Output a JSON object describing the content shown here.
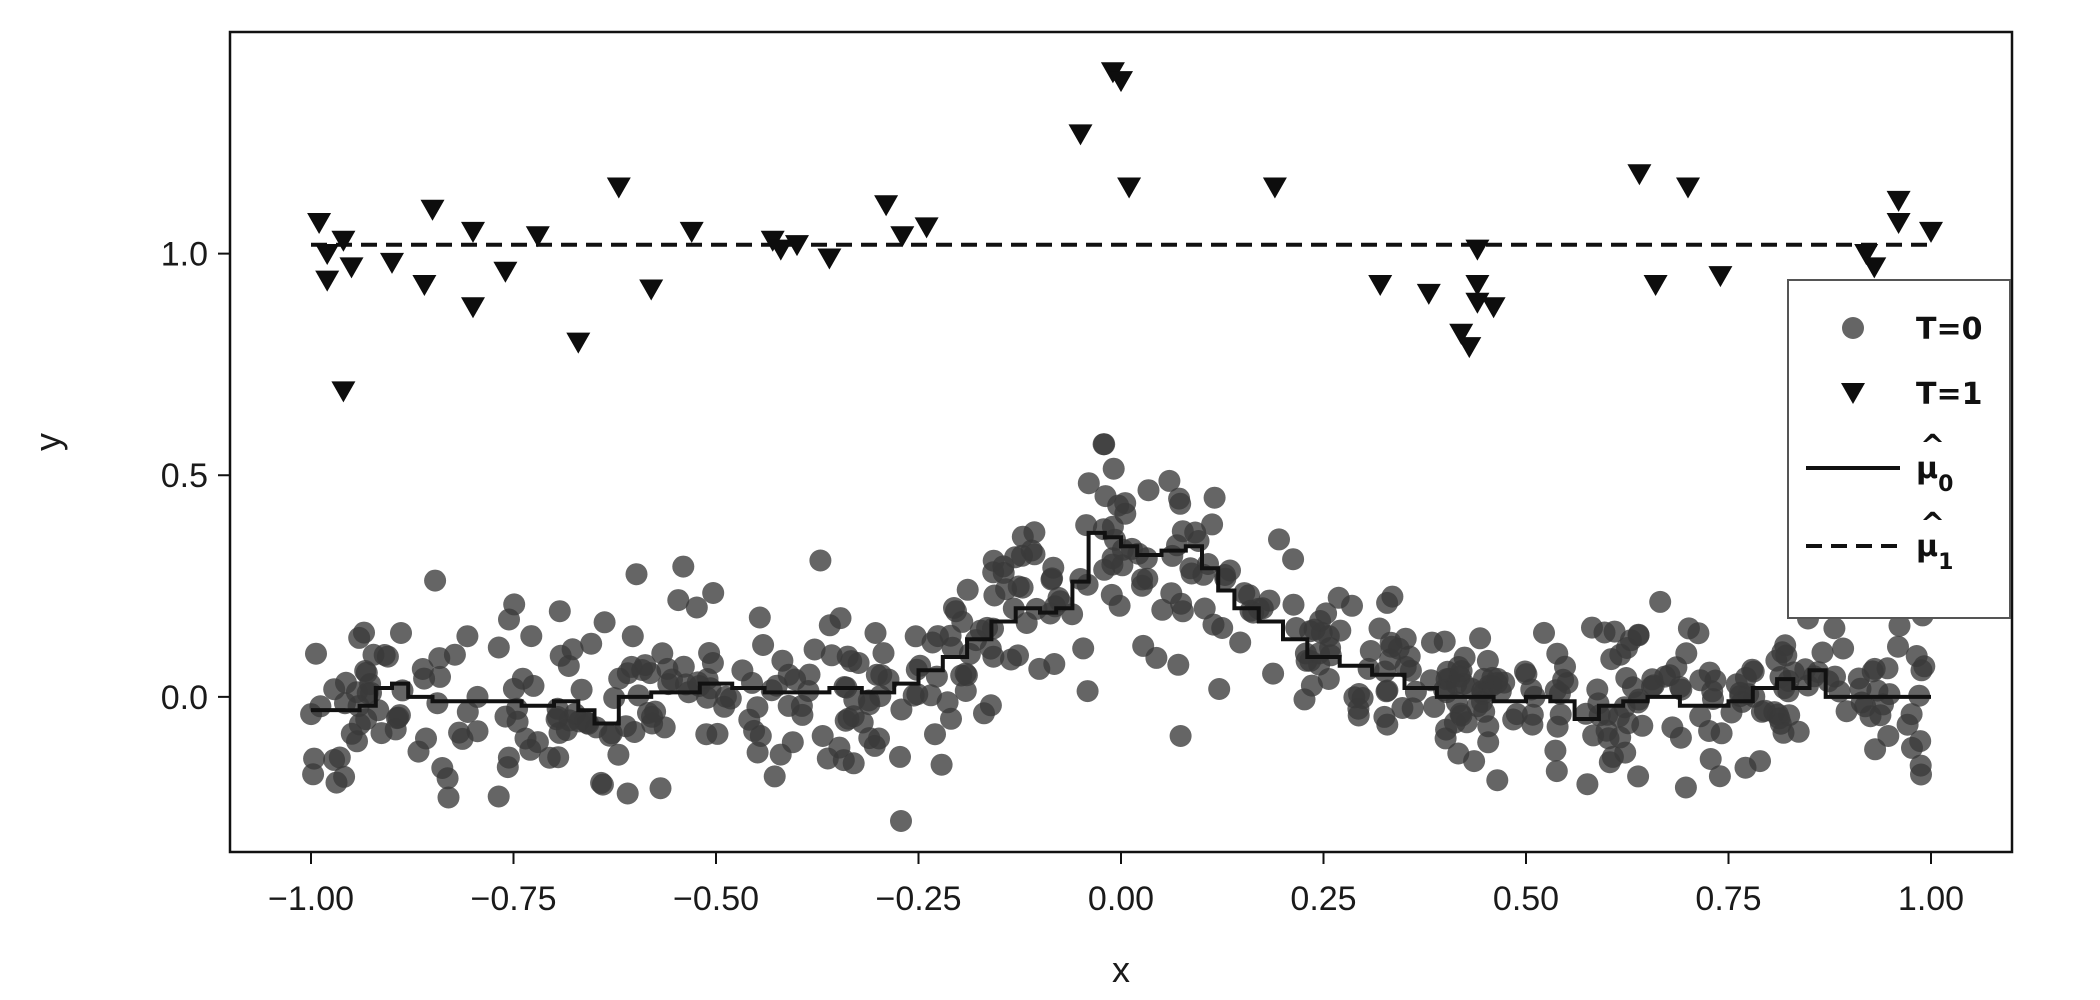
{
  "chart_data": {
    "type": "scatter",
    "title": "",
    "xlabel": "x",
    "ylabel": "y",
    "xlim": [
      -1.1,
      1.1
    ],
    "ylim": [
      -0.35,
      1.5
    ],
    "x_ticks": [
      -1.0,
      -0.75,
      -0.5,
      -0.25,
      0.0,
      0.25,
      0.5,
      0.75,
      1.0
    ],
    "x_tick_labels": [
      "−1.00",
      "−0.75",
      "−0.50",
      "−0.25",
      "0.00",
      "0.25",
      "0.50",
      "0.75",
      "1.00"
    ],
    "y_ticks": [
      0.0,
      0.5,
      1.0
    ],
    "y_tick_labels": [
      "0.0",
      "0.5",
      "1.0"
    ],
    "grid": false,
    "legend_position": "right",
    "legend_labels": {
      "t0": "T=0",
      "t1": "T=1",
      "mu0_base": "μ",
      "mu0_sub": "0",
      "mu1_base": "μ",
      "mu1_sub": "1"
    },
    "colors": {
      "t0_points": "#3a3a3a",
      "t1_points": "#0d0d0d",
      "lines": "#111111"
    },
    "series": [
      {
        "name": "T=1",
        "kind": "scatter-triangle-down",
        "points": [
          [
            -0.99,
            1.07
          ],
          [
            -0.98,
            1.0
          ],
          [
            -0.98,
            0.94
          ],
          [
            -0.96,
            1.03
          ],
          [
            -0.96,
            0.69
          ],
          [
            -0.95,
            0.97
          ],
          [
            -0.9,
            0.98
          ],
          [
            -0.86,
            0.93
          ],
          [
            -0.85,
            1.1
          ],
          [
            -0.8,
            1.05
          ],
          [
            -0.8,
            0.88
          ],
          [
            -0.76,
            0.96
          ],
          [
            -0.72,
            1.04
          ],
          [
            -0.67,
            0.8
          ],
          [
            -0.62,
            1.15
          ],
          [
            -0.58,
            0.92
          ],
          [
            -0.53,
            1.05
          ],
          [
            -0.43,
            1.03
          ],
          [
            -0.42,
            1.01
          ],
          [
            -0.4,
            1.02
          ],
          [
            -0.36,
            0.99
          ],
          [
            -0.29,
            1.11
          ],
          [
            -0.27,
            1.04
          ],
          [
            -0.24,
            1.06
          ],
          [
            -0.05,
            1.27
          ],
          [
            -0.01,
            1.41
          ],
          [
            0.0,
            1.39
          ],
          [
            0.01,
            1.15
          ],
          [
            0.19,
            1.15
          ],
          [
            0.32,
            0.93
          ],
          [
            0.38,
            0.91
          ],
          [
            0.42,
            0.82
          ],
          [
            0.43,
            0.79
          ],
          [
            0.44,
            1.01
          ],
          [
            0.44,
            0.93
          ],
          [
            0.44,
            0.89
          ],
          [
            0.46,
            0.88
          ],
          [
            0.64,
            1.18
          ],
          [
            0.66,
            0.93
          ],
          [
            0.7,
            1.15
          ],
          [
            0.74,
            0.95
          ],
          [
            0.92,
            1.0
          ],
          [
            0.93,
            0.97
          ],
          [
            0.96,
            1.12
          ],
          [
            0.96,
            1.07
          ],
          [
            1.0,
            1.05
          ]
        ]
      },
      {
        "name": "T=0",
        "kind": "scatter-circle",
        "count": 560,
        "x_range": [
          -1.0,
          1.0
        ],
        "noise_sd": 0.09,
        "seed": 7
      },
      {
        "name": "μ0",
        "kind": "step-line",
        "style": "solid",
        "points": [
          [
            -1.0,
            -0.03
          ],
          [
            -0.96,
            -0.03
          ],
          [
            -0.94,
            -0.02
          ],
          [
            -0.92,
            0.02
          ],
          [
            -0.9,
            0.03
          ],
          [
            -0.88,
            0.0
          ],
          [
            -0.85,
            -0.01
          ],
          [
            -0.82,
            -0.01
          ],
          [
            -0.78,
            -0.01
          ],
          [
            -0.74,
            -0.02
          ],
          [
            -0.7,
            -0.01
          ],
          [
            -0.67,
            -0.03
          ],
          [
            -0.65,
            -0.06
          ],
          [
            -0.62,
            0.0
          ],
          [
            -0.58,
            0.01
          ],
          [
            -0.54,
            0.01
          ],
          [
            -0.52,
            0.03
          ],
          [
            -0.48,
            0.02
          ],
          [
            -0.44,
            0.01
          ],
          [
            -0.4,
            0.01
          ],
          [
            -0.36,
            0.02
          ],
          [
            -0.32,
            0.01
          ],
          [
            -0.28,
            0.03
          ],
          [
            -0.25,
            0.06
          ],
          [
            -0.22,
            0.09
          ],
          [
            -0.19,
            0.13
          ],
          [
            -0.16,
            0.17
          ],
          [
            -0.13,
            0.2
          ],
          [
            -0.1,
            0.19
          ],
          [
            -0.08,
            0.2
          ],
          [
            -0.06,
            0.26
          ],
          [
            -0.04,
            0.37
          ],
          [
            -0.02,
            0.36
          ],
          [
            0.0,
            0.34
          ],
          [
            0.02,
            0.32
          ],
          [
            0.05,
            0.33
          ],
          [
            0.08,
            0.34
          ],
          [
            0.1,
            0.29
          ],
          [
            0.12,
            0.24
          ],
          [
            0.14,
            0.2
          ],
          [
            0.17,
            0.17
          ],
          [
            0.2,
            0.13
          ],
          [
            0.23,
            0.09
          ],
          [
            0.27,
            0.07
          ],
          [
            0.31,
            0.05
          ],
          [
            0.35,
            0.02
          ],
          [
            0.39,
            0.0
          ],
          [
            0.42,
            0.0
          ],
          [
            0.46,
            -0.01
          ],
          [
            0.5,
            0.0
          ],
          [
            0.53,
            -0.01
          ],
          [
            0.56,
            -0.05
          ],
          [
            0.59,
            -0.02
          ],
          [
            0.62,
            -0.01
          ],
          [
            0.65,
            0.0
          ],
          [
            0.69,
            -0.02
          ],
          [
            0.72,
            -0.02
          ],
          [
            0.75,
            -0.01
          ],
          [
            0.78,
            0.02
          ],
          [
            0.81,
            0.04
          ],
          [
            0.83,
            0.02
          ],
          [
            0.85,
            0.06
          ],
          [
            0.87,
            0.0
          ],
          [
            0.9,
            0.0
          ],
          [
            0.95,
            0.0
          ],
          [
            1.0,
            0.0
          ]
        ]
      },
      {
        "name": "μ1",
        "kind": "line",
        "style": "dashed",
        "points": [
          [
            -1.0,
            1.02
          ],
          [
            1.0,
            1.02
          ]
        ]
      }
    ]
  }
}
